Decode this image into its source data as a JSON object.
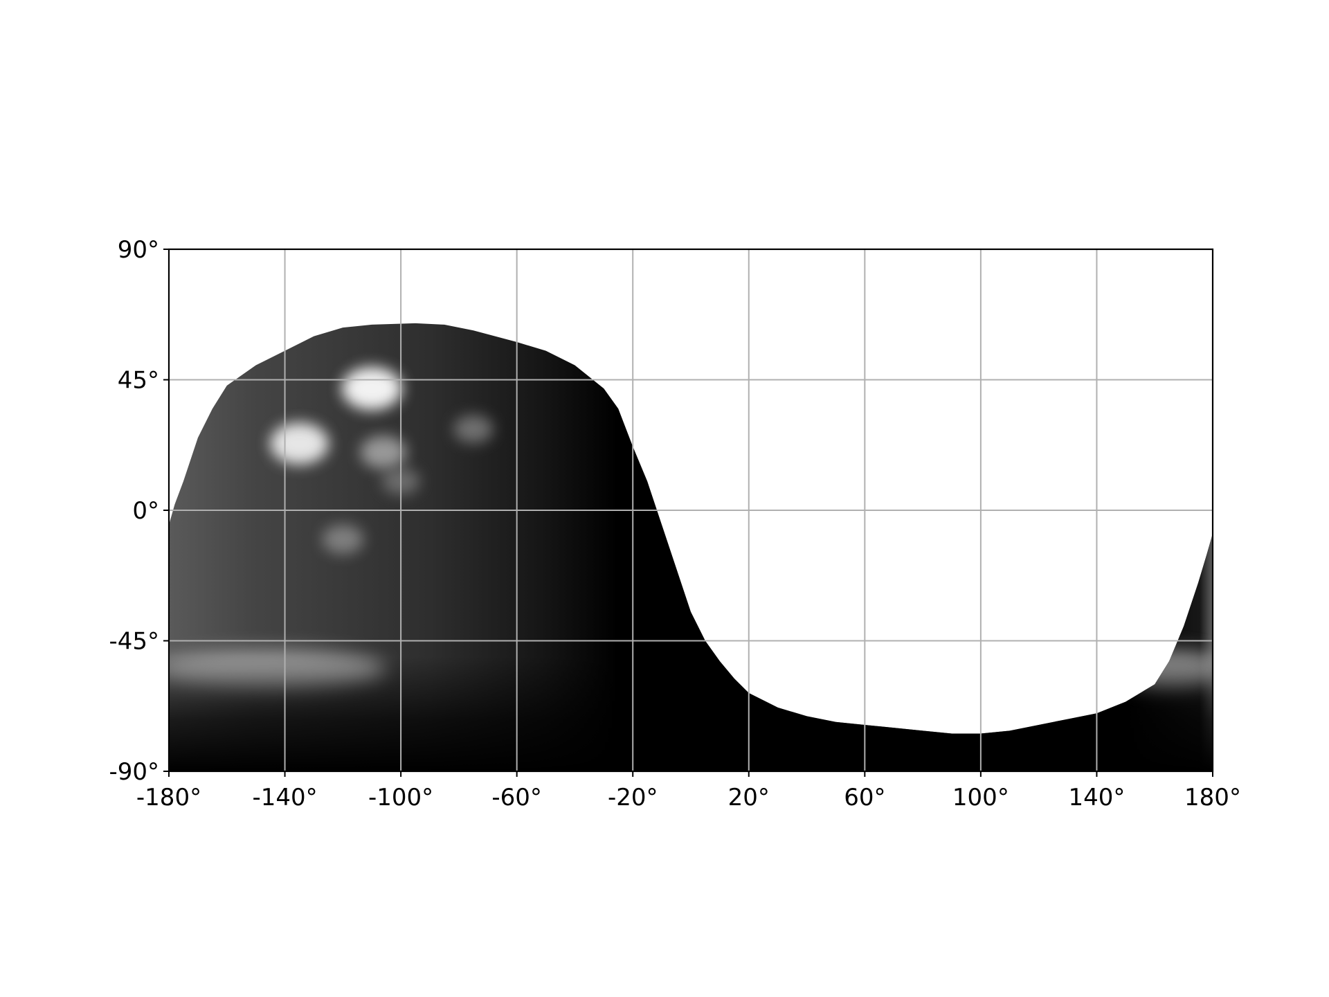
{
  "chart_data": {
    "type": "map",
    "projection": "equirectangular",
    "image": "grayscale planetary surface / cloud mosaic, unilluminated regions white",
    "xlim": [
      -180,
      180
    ],
    "ylim": [
      -90,
      90
    ],
    "grid": true,
    "x_ticks": [
      -180,
      -140,
      -100,
      -60,
      -20,
      20,
      60,
      100,
      140,
      180
    ],
    "y_ticks": [
      -90,
      -45,
      0,
      45,
      90
    ],
    "x_tick_labels": [
      "-180°",
      "-140°",
      "-100°",
      "-60°",
      "-20°",
      "20°",
      "60°",
      "100°",
      "140°",
      "180°"
    ],
    "y_tick_labels": [
      "-90°",
      "-45°",
      "0°",
      "45°",
      "90°"
    ],
    "coverage_boundary": [
      [
        -180,
        -5
      ],
      [
        -178,
        2
      ],
      [
        -175,
        10
      ],
      [
        -170,
        25
      ],
      [
        -165,
        35
      ],
      [
        -160,
        43
      ],
      [
        -150,
        50
      ],
      [
        -140,
        55
      ],
      [
        -130,
        60
      ],
      [
        -120,
        63
      ],
      [
        -110,
        64
      ],
      [
        -95,
        64.5
      ],
      [
        -85,
        64
      ],
      [
        -75,
        62
      ],
      [
        -60,
        58
      ],
      [
        -50,
        55
      ],
      [
        -40,
        50
      ],
      [
        -30,
        42
      ],
      [
        -25,
        35
      ],
      [
        -20,
        22
      ],
      [
        -15,
        10
      ],
      [
        -10,
        -5
      ],
      [
        -5,
        -20
      ],
      [
        0,
        -35
      ],
      [
        5,
        -45
      ],
      [
        10,
        -52
      ],
      [
        15,
        -58
      ],
      [
        20,
        -63
      ],
      [
        30,
        -68
      ],
      [
        40,
        -71
      ],
      [
        50,
        -73
      ],
      [
        60,
        -74
      ],
      [
        70,
        -75
      ],
      [
        80,
        -76
      ],
      [
        90,
        -77
      ],
      [
        100,
        -77
      ],
      [
        110,
        -76
      ],
      [
        120,
        -74
      ],
      [
        130,
        -72
      ],
      [
        140,
        -70
      ],
      [
        150,
        -66
      ],
      [
        160,
        -60
      ],
      [
        165,
        -52
      ],
      [
        170,
        -40
      ],
      [
        175,
        -25
      ],
      [
        178,
        -15
      ],
      [
        180,
        -8
      ]
    ],
    "bright_features": [
      {
        "lon": -110,
        "lat": 42,
        "intensity": 0.95
      },
      {
        "lon": -135,
        "lat": 23,
        "intensity": 0.9
      },
      {
        "lon": -106,
        "lat": 20,
        "intensity": 0.55
      },
      {
        "lon": -75,
        "lat": 28,
        "intensity": 0.35
      },
      {
        "lon": -120,
        "lat": -10,
        "intensity": 0.4
      },
      {
        "lon": -100,
        "lat": 10,
        "intensity": 0.3
      }
    ],
    "bright_bands": [
      {
        "lat": -55,
        "lon_range": [
          -180,
          -110
        ]
      },
      {
        "lat": -55,
        "lon_range": [
          150,
          180
        ]
      }
    ]
  }
}
